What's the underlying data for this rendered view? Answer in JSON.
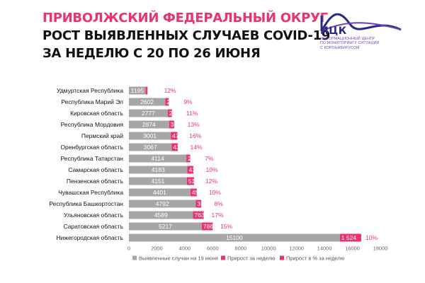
{
  "header": {
    "line1": "ПРИВОЛЖСКИЙ ФЕДЕРАЛЬНЫЙ ОКРУГ",
    "line2": "РОСТ ВЫЯВЛЕННЫХ СЛУЧАЕВ COVID-19",
    "line3": "ЗА НЕДЕЛЮ С 20 ПО 26 ИЮНЯ"
  },
  "logo": {
    "abbr": "ИЦК",
    "text_lines": [
      "ИНФОРМАЦИОННЫЙ ЦЕНТР",
      "ПО МОНИТОРИНГУ СИТУАЦИИ",
      "С КОРОНАВИРУСОМ"
    ]
  },
  "colors": {
    "base": "#a6a6a6",
    "increase": "#e8336e",
    "pct": "#e8336e",
    "title_accent": "#e8336e",
    "logo": "#2b2a82"
  },
  "chart_data": {
    "type": "bar",
    "orientation": "horizontal",
    "stacked": true,
    "categories": [
      "Удмуртская Республика",
      "Республика Марий Эл",
      "Кировская область",
      "Республика Мордовия",
      "Пермский край",
      "Оренбургская область",
      "Республика Татарстан",
      "Самарская область",
      "Пензенская область",
      "Чувашская Республика",
      "Республика Башкортостан",
      "Ульяновская область",
      "Саратовская область",
      "Нижегородская область"
    ],
    "series": [
      {
        "name": "Выявленные случаи на 19 июня",
        "values": [
          1195,
          2602,
          2777,
          2874,
          3001,
          3067,
          4114,
          4183,
          4151,
          4401,
          4792,
          4589,
          5217,
          15100
        ],
        "labels": [
          "1195",
          "2602",
          "2777",
          "2874",
          "3001",
          "3067",
          "4114",
          "4183",
          "4151",
          "4401",
          "4792",
          "4589",
          "5217",
          "15100"
        ]
      },
      {
        "name": "Прирост за неделю",
        "values": [
          139,
          247,
          299,
          366,
          473,
          432,
          276,
          434,
          513,
          459,
          379,
          763,
          786,
          1524
        ],
        "labels": [
          "139",
          "247",
          "299",
          "366",
          "473",
          "432",
          "276",
          "434",
          "513",
          "459",
          "379",
          "763",
          "786",
          "1 524"
        ]
      },
      {
        "name": "Прирост в % за неделю",
        "values": [
          12,
          9,
          11,
          13,
          16,
          14,
          7,
          10,
          12,
          10,
          8,
          17,
          15,
          10
        ],
        "labels": [
          "12%",
          "9%",
          "11%",
          "13%",
          "16%",
          "14%",
          "7%",
          "10%",
          "12%",
          "10%",
          "8%",
          "17%",
          "15%",
          "10%"
        ]
      }
    ],
    "x_ticks": [
      "0",
      "2000",
      "4000",
      "6000",
      "8000",
      "10000",
      "12000",
      "14000",
      "16000",
      "18000"
    ],
    "xlim": [
      0,
      18000
    ],
    "grid": false,
    "legend_position": "bottom"
  }
}
